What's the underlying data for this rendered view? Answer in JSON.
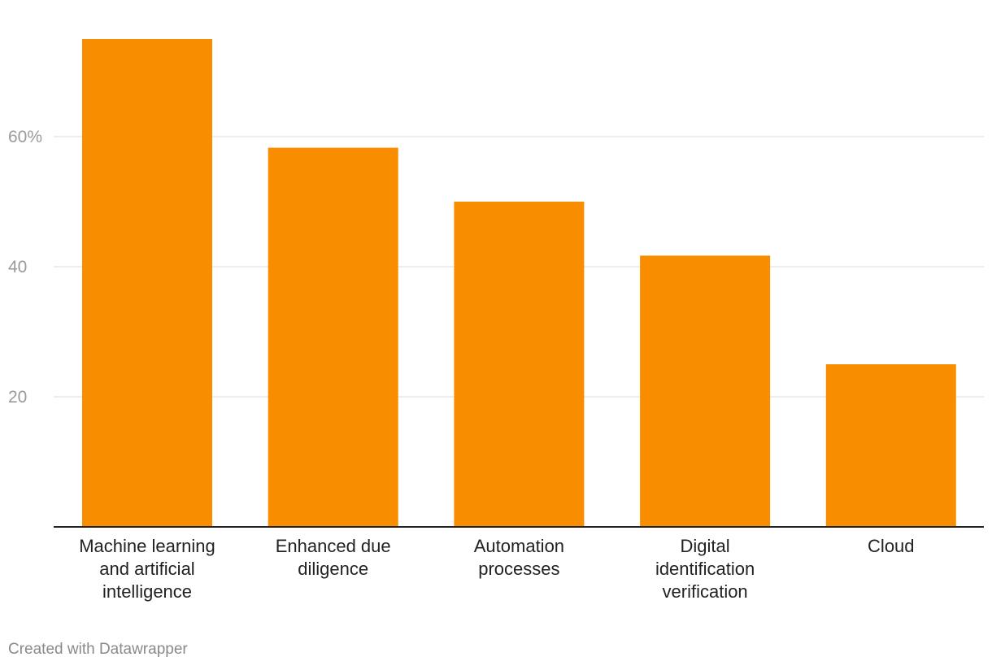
{
  "chart_data": {
    "type": "bar",
    "categories": [
      "Machine learning and artificial intelligence",
      "Enhanced due diligence",
      "Automation processes",
      "Digital identification verification",
      "Cloud"
    ],
    "category_lines": [
      [
        "Machine learning",
        "and artificial",
        "intelligence"
      ],
      [
        "Enhanced due",
        "diligence"
      ],
      [
        "Automation",
        "processes"
      ],
      [
        "Digital",
        "identification",
        "verification"
      ],
      [
        "Cloud"
      ]
    ],
    "values": [
      75,
      58.3,
      50,
      41.7,
      25
    ],
    "ylim": [
      0,
      75
    ],
    "yticks": [
      {
        "value": 20,
        "label": "20"
      },
      {
        "value": 40,
        "label": "40"
      },
      {
        "value": 60,
        "label": "60%"
      }
    ],
    "grid": true,
    "colors": {
      "bar": "#f98d00",
      "grid": "#e2e2e2",
      "baseline": "#222222"
    }
  },
  "footer": {
    "credit": "Created with Datawrapper"
  }
}
